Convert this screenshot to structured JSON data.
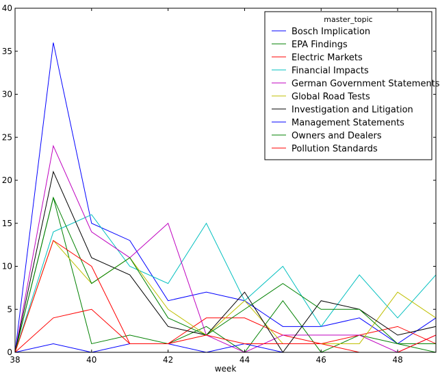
{
  "chart_data": {
    "type": "line",
    "title": "",
    "xlabel": "week",
    "ylabel": "",
    "xlim": [
      38,
      49
    ],
    "ylim": [
      0,
      40
    ],
    "x_ticks": [
      38,
      40,
      42,
      44,
      46,
      48
    ],
    "y_ticks": [
      0,
      5,
      10,
      15,
      20,
      25,
      30,
      35,
      40
    ],
    "grid": false,
    "legend_title": "master_topic",
    "legend_position": "top-right",
    "x": [
      38,
      39,
      40,
      41,
      42,
      43,
      44,
      45,
      46,
      47,
      48,
      49
    ],
    "series": [
      {
        "name": "Bosch Implication",
        "color": "#0000ff",
        "values": [
          0,
          36,
          15,
          13,
          6,
          7,
          6,
          3,
          3,
          4,
          1,
          4
        ]
      },
      {
        "name": "EPA Findings",
        "color": "#008000",
        "values": [
          0,
          18,
          1,
          2,
          1,
          3,
          0,
          6,
          0,
          2,
          1,
          0
        ]
      },
      {
        "name": "Electric Markets",
        "color": "#ff0000",
        "values": [
          0,
          4,
          5,
          1,
          1,
          4,
          4,
          2,
          1,
          2,
          3,
          1
        ]
      },
      {
        "name": "Financial Impacts",
        "color": "#00bfbf",
        "values": [
          0,
          14,
          16,
          10,
          8,
          15,
          6,
          10,
          3,
          9,
          4,
          9
        ]
      },
      {
        "name": "German Government Statements",
        "color": "#bf00bf",
        "values": [
          0,
          24,
          14,
          11,
          15,
          2,
          0,
          2,
          2,
          2,
          0,
          2
        ]
      },
      {
        "name": "Global Road Tests",
        "color": "#bfbf00",
        "values": [
          0,
          13,
          8,
          11,
          5,
          2,
          6,
          1,
          1,
          1,
          7,
          4
        ]
      },
      {
        "name": "Investigation and Litigation",
        "color": "#000000",
        "values": [
          0,
          21,
          11,
          9,
          3,
          2,
          7,
          0,
          6,
          5,
          2,
          3
        ]
      },
      {
        "name": "Management Statements",
        "color": "#0000ff",
        "values": [
          0,
          1,
          0,
          1,
          1,
          0,
          1,
          0,
          0,
          0,
          0,
          0
        ]
      },
      {
        "name": "Owners and Dealers",
        "color": "#008000",
        "values": [
          0,
          18,
          8,
          11,
          4,
          2,
          5,
          8,
          5,
          5,
          1,
          1
        ]
      },
      {
        "name": "Pollution Standards",
        "color": "#ff0000",
        "values": [
          0,
          13,
          10,
          1,
          1,
          2,
          1,
          1,
          1,
          0,
          0,
          2
        ]
      }
    ]
  }
}
